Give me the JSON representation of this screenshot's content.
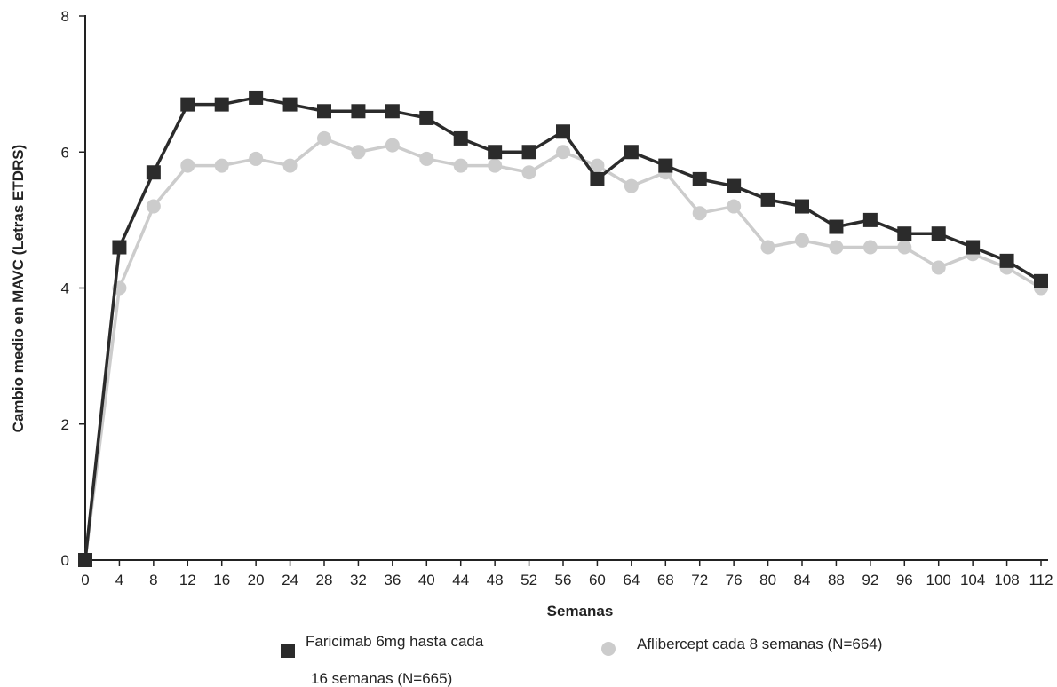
{
  "chart_data": {
    "type": "line",
    "title": "",
    "xlabel": "Semanas",
    "ylabel": "Cambio medio en MAVC (Letras ETDRS)",
    "xlim": [
      0,
      112
    ],
    "ylim": [
      0,
      8
    ],
    "x_ticks": [
      0,
      4,
      8,
      12,
      16,
      20,
      24,
      28,
      32,
      36,
      40,
      44,
      48,
      52,
      56,
      60,
      64,
      68,
      72,
      76,
      80,
      84,
      88,
      92,
      96,
      100,
      104,
      108,
      112
    ],
    "y_ticks": [
      0,
      2,
      4,
      6,
      8
    ],
    "grid": false,
    "legend_position": "bottom",
    "x": [
      0,
      4,
      8,
      12,
      16,
      20,
      24,
      28,
      32,
      36,
      40,
      44,
      48,
      52,
      56,
      60,
      64,
      68,
      72,
      76,
      80,
      84,
      88,
      92,
      96,
      100,
      104,
      108,
      112
    ],
    "series": [
      {
        "name": "Faricimab 6mg hasta cada 16 semanas (N=665)",
        "name_lines": [
          "Faricimab 6mg hasta cada",
          "16 semanas (N=665)"
        ],
        "color": "#2b2b2b",
        "marker": "square",
        "values": [
          0,
          4.6,
          5.7,
          6.7,
          6.7,
          6.8,
          6.7,
          6.6,
          6.6,
          6.6,
          6.5,
          6.2,
          6.0,
          6.0,
          6.3,
          5.6,
          6.0,
          5.8,
          5.6,
          5.5,
          5.3,
          5.2,
          4.9,
          5.0,
          4.8,
          4.8,
          4.6,
          4.4,
          4.1
        ]
      },
      {
        "name": "Aflibercept cada 8 semanas (N=664)",
        "name_lines": [
          "Aflibercept cada 8 semanas (N=664)"
        ],
        "color": "#cccccc",
        "marker": "circle",
        "values": [
          0,
          4.0,
          5.2,
          5.8,
          5.8,
          5.9,
          5.8,
          6.2,
          6.0,
          6.1,
          5.9,
          5.8,
          5.8,
          5.7,
          6.0,
          5.8,
          5.5,
          5.7,
          5.1,
          5.2,
          4.6,
          4.7,
          4.6,
          4.6,
          4.6,
          4.3,
          4.5,
          4.3,
          4.0
        ]
      }
    ]
  }
}
